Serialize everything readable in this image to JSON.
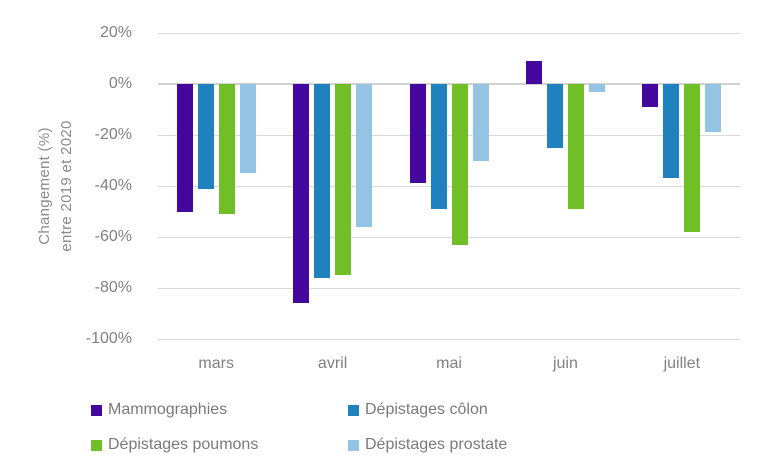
{
  "chart_data": {
    "type": "bar",
    "title": "",
    "ylabel_line1": "Changement (%)",
    "ylabel_line2": "entre 2019 et 2020",
    "categories": [
      "mars",
      "avril",
      "mai",
      "juin",
      "juillet"
    ],
    "series": [
      {
        "name": "Mammographies",
        "color": "#44089e",
        "values": [
          -50,
          -86,
          -39,
          9,
          -9
        ]
      },
      {
        "name": "Dépistages côlon",
        "color": "#1f81be",
        "values": [
          -41,
          -76,
          -49,
          -25,
          -37
        ]
      },
      {
        "name": "Dépistages poumons",
        "color": "#70bf26",
        "values": [
          -51,
          -75,
          -63,
          -49,
          -58
        ]
      },
      {
        "name": "Dépistages prostate",
        "color": "#94c4e4",
        "values": [
          -35,
          -56,
          -30,
          -3,
          -19
        ]
      }
    ],
    "ylim": [
      -100,
      20
    ],
    "ytick_step": 20,
    "yticks": [
      20,
      0,
      -20,
      -40,
      -60,
      -80,
      -100
    ],
    "ytick_labels": [
      "20%",
      "0%",
      "-20%",
      "-40%",
      "-60%",
      "-80%",
      "-100%"
    ],
    "grid": true,
    "legend_position": "bottom"
  },
  "colors": {
    "gridline": "#d9d9d9",
    "zero_line": "#d2d2d2",
    "axis_text": "#808080"
  }
}
